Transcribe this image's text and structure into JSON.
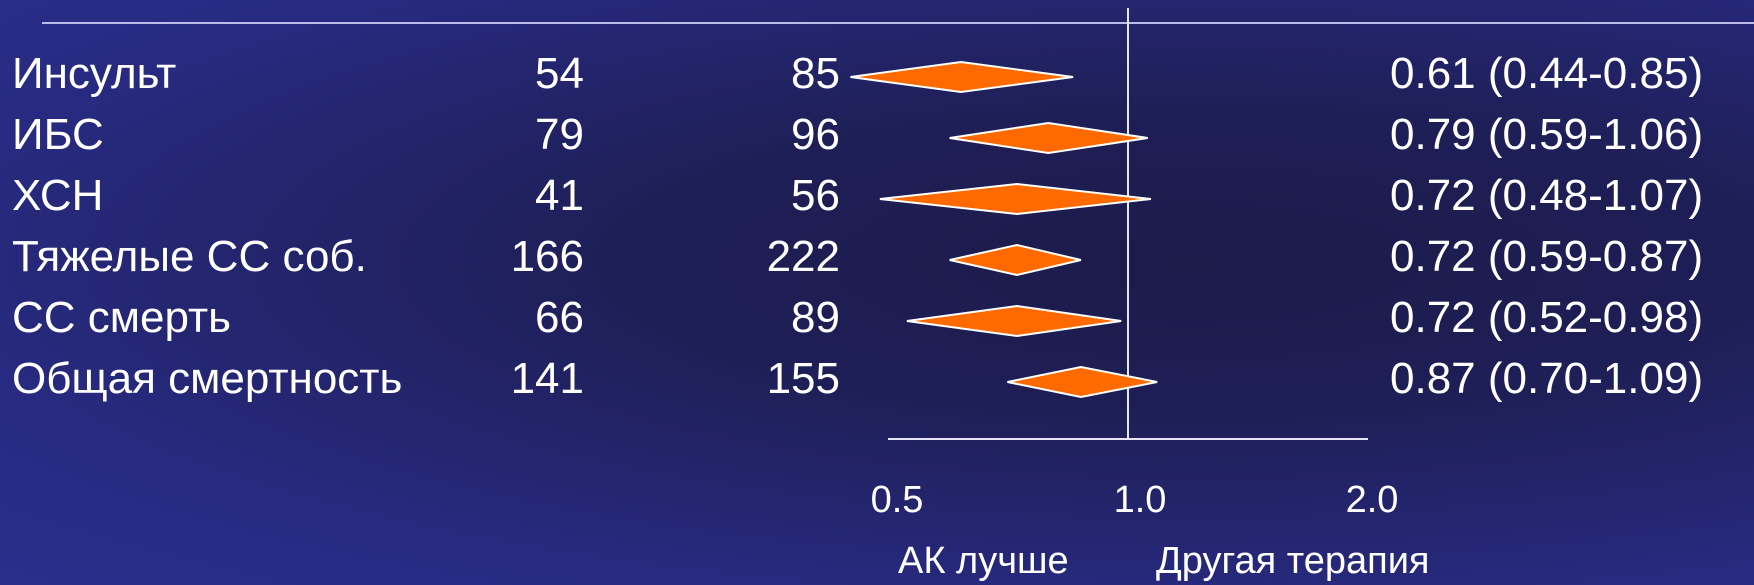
{
  "colors": {
    "diamond_fill": "#ff6a00",
    "diamond_stroke": "#ffffff",
    "line": "#e6e6f7"
  },
  "chart_data": {
    "type": "forest",
    "scale": "log",
    "xlim": [
      0.5,
      2.0
    ],
    "reference_line": 1.0,
    "ticks": [
      "0.5",
      "1.0",
      "2.0"
    ],
    "favors_left": "АК  лучше",
    "favors_right": "Другая терапия",
    "rows": [
      {
        "label": "Инсульт",
        "n1": "54",
        "n2": "85",
        "hr": 0.61,
        "lo": 0.44,
        "hi": 0.85,
        "ci_text": "0.61 (0.44-0.85)"
      },
      {
        "label": "ИБС",
        "n1": "79",
        "n2": "96",
        "hr": 0.79,
        "lo": 0.59,
        "hi": 1.06,
        "ci_text": "0.79 (0.59-1.06)"
      },
      {
        "label": "ХСН",
        "n1": "41",
        "n2": "56",
        "hr": 0.72,
        "lo": 0.48,
        "hi": 1.07,
        "ci_text": "0.72 (0.48-1.07)"
      },
      {
        "label": "Тяжелые СС соб.",
        "n1": "166",
        "n2": "222",
        "hr": 0.72,
        "lo": 0.59,
        "hi": 0.87,
        "ci_text": "0.72 (0.59-0.87)"
      },
      {
        "label": "СС смерть",
        "n1": "66",
        "n2": "89",
        "hr": 0.72,
        "lo": 0.52,
        "hi": 0.98,
        "ci_text": "0.72 (0.52-0.98)"
      },
      {
        "label": "Общая смертность",
        "n1": "141",
        "n2": "155",
        "hr": 0.87,
        "lo": 0.7,
        "hi": 1.09,
        "ci_text": "0.87 (0.70-1.09)"
      }
    ]
  }
}
